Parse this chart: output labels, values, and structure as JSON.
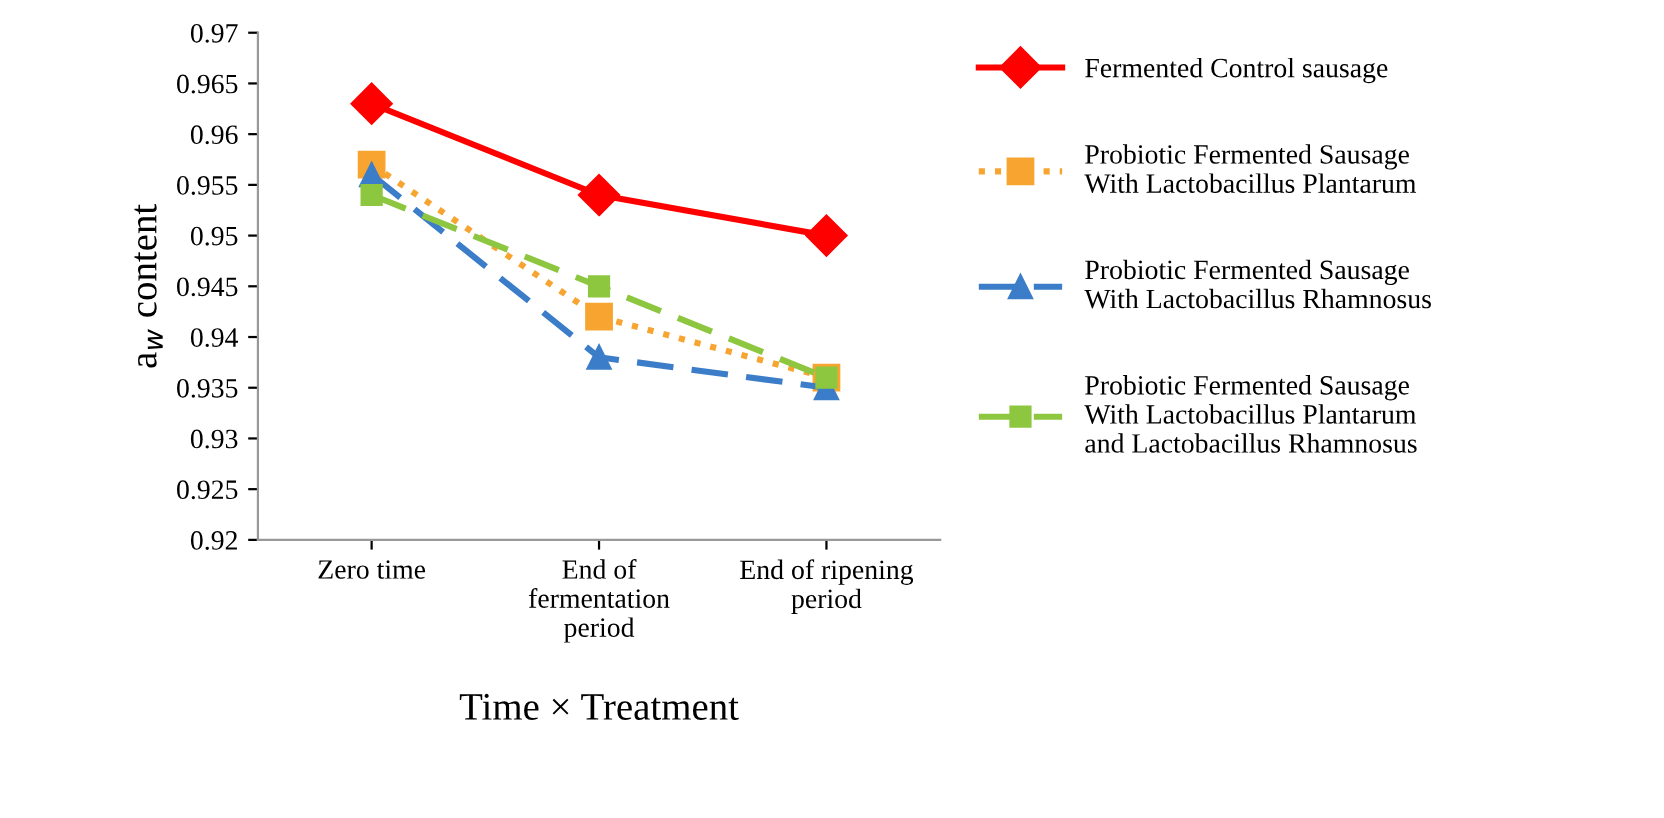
{
  "chart_data": {
    "type": "line",
    "xlabel": "Time × Treatment",
    "ylabel": "a$_{w}$ content",
    "categories": [
      "Zero time",
      "End of\nfermentation\nperiod",
      "End of ripening\nperiod"
    ],
    "ylim": [
      0.92,
      0.97
    ],
    "yticks": [
      0.92,
      0.925,
      0.93,
      0.935,
      0.94,
      0.945,
      0.95,
      0.955,
      0.96,
      0.965,
      0.97
    ],
    "grid": false,
    "legend": "right",
    "series": [
      {
        "name": "Fermented Control sausage",
        "color": "#ff0000",
        "marker": "diamond",
        "line_style": "solid",
        "values": [
          0.963,
          0.954,
          0.95
        ]
      },
      {
        "name": "Probiotic Fermented Sausage\nWith Lactobacillus Plantarum",
        "color": "#f7a530",
        "marker": "square",
        "line_style": "dotted",
        "values": [
          0.957,
          0.942,
          0.936
        ]
      },
      {
        "name": "Probiotic Fermented Sausage\nWith Lactobacillus Rhamnosus",
        "color": "#3b7dc8",
        "marker": "triangle",
        "line_style": "dashed",
        "values": [
          0.956,
          0.938,
          0.935
        ]
      },
      {
        "name": "Probiotic Fermented Sausage\nWith Lactobacillus Plantarum\nand Lactobacillus Rhamnosus",
        "color": "#8dc63f",
        "marker": "square",
        "line_style": "dashed",
        "values": [
          0.954,
          0.945,
          0.936
        ]
      }
    ]
  }
}
